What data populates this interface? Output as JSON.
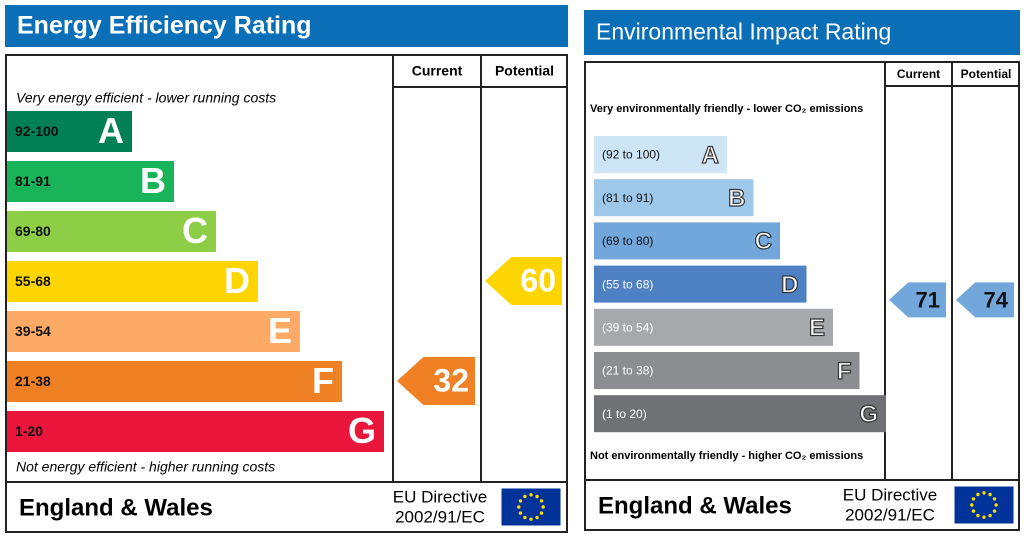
{
  "energy": {
    "title": "Energy Efficiency Rating",
    "current_header": "Current",
    "potential_header": "Potential",
    "top_note": "Very energy efficient - lower running costs",
    "bottom_note": "Not energy efficient - higher running costs",
    "bands": [
      {
        "range": "92-100",
        "letter": "A",
        "color": "#008054"
      },
      {
        "range": "81-91",
        "letter": "B",
        "color": "#19b459"
      },
      {
        "range": "69-80",
        "letter": "C",
        "color": "#8dce46"
      },
      {
        "range": "55-68",
        "letter": "D",
        "color": "#ffd500"
      },
      {
        "range": "39-54",
        "letter": "E",
        "color": "#fcaa65"
      },
      {
        "range": "21-38",
        "letter": "F",
        "color": "#ef8023"
      },
      {
        "range": "1-20",
        "letter": "G",
        "color": "#e9153b"
      }
    ],
    "current": 32,
    "potential": 60,
    "footer": {
      "region": "England & Wales",
      "directive": "EU Directive",
      "directive_code": "2002/91/EC"
    }
  },
  "environmental": {
    "title": "Environmental Impact Rating",
    "current_header": "Current",
    "potential_header": "Potential",
    "top_note": "Very environmentally friendly - lower CO₂ emissions",
    "bottom_note": "Not environmentally friendly - higher CO₂ emissions",
    "bands": [
      {
        "range": "(92 to 100)",
        "letter": "A",
        "color": "#cde5f5"
      },
      {
        "range": "(81 to 91)",
        "letter": "B",
        "color": "#9ec8ea"
      },
      {
        "range": "(69 to 80)",
        "letter": "C",
        "color": "#72a7dc"
      },
      {
        "range": "(55 to 68)",
        "letter": "D",
        "color": "#4e80c4"
      },
      {
        "range": "(39 to 54)",
        "letter": "E",
        "color": "#a6a8ab"
      },
      {
        "range": "(21 to 38)",
        "letter": "F",
        "color": "#8b8d90"
      },
      {
        "range": "(1 to 20)",
        "letter": "G",
        "color": "#6f7174"
      }
    ],
    "current": 71,
    "potential": 74,
    "footer": {
      "region": "England & Wales",
      "directive": "EU Directive",
      "directive_code": "2002/91/EC"
    }
  }
}
